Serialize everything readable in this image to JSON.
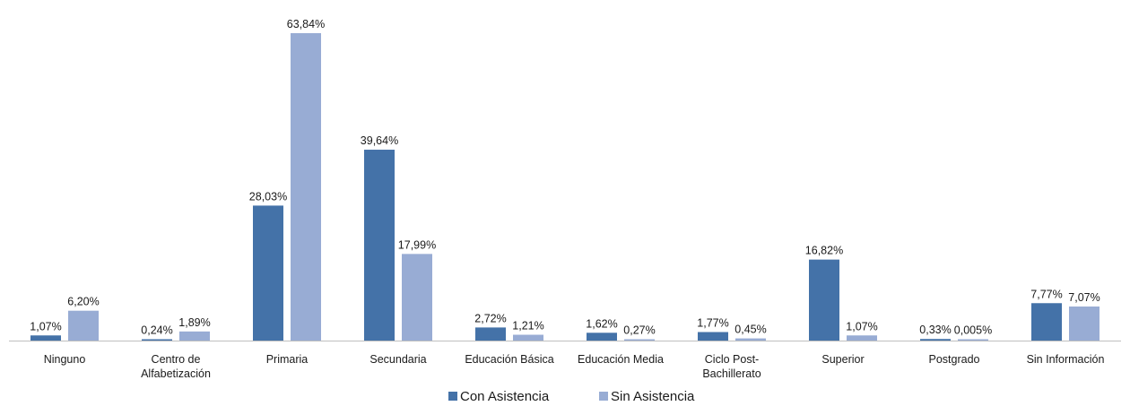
{
  "chart_data": {
    "type": "bar",
    "title": "",
    "xlabel": "",
    "ylabel": "",
    "ylim": [
      0,
      66
    ],
    "grid": false,
    "legend_position": "bottom",
    "categories": [
      [
        "Ninguno"
      ],
      [
        "Centro de",
        "Alfabetización"
      ],
      [
        "Primaria"
      ],
      [
        "Secundaria"
      ],
      [
        "Educación Básica"
      ],
      [
        "Educación Media"
      ],
      [
        "Ciclo Post-",
        "Bachillerato"
      ],
      [
        "Superior"
      ],
      [
        "Postgrado"
      ],
      [
        "Sin Información"
      ]
    ],
    "series": [
      {
        "name": "Con Asistencia",
        "color": "#4472a8",
        "values": [
          1.07,
          0.24,
          28.03,
          39.64,
          2.72,
          1.62,
          1.77,
          16.82,
          0.33,
          7.77
        ],
        "labels": [
          "1,07%",
          "0,24%",
          "28,03%",
          "39,64%",
          "2,72%",
          "1,62%",
          "1,77%",
          "16,82%",
          "0,33%",
          "7,77%"
        ]
      },
      {
        "name": "Sin Asistencia",
        "color": "#98acd4",
        "values": [
          6.2,
          1.89,
          63.84,
          17.99,
          1.21,
          0.27,
          0.45,
          1.07,
          0.005,
          7.07
        ],
        "labels": [
          "6,20%",
          "1,89%",
          "63,84%",
          "17,99%",
          "1,21%",
          "0,27%",
          "0,45%",
          "1,07%",
          "0,005%",
          "7,07%"
        ]
      }
    ]
  }
}
